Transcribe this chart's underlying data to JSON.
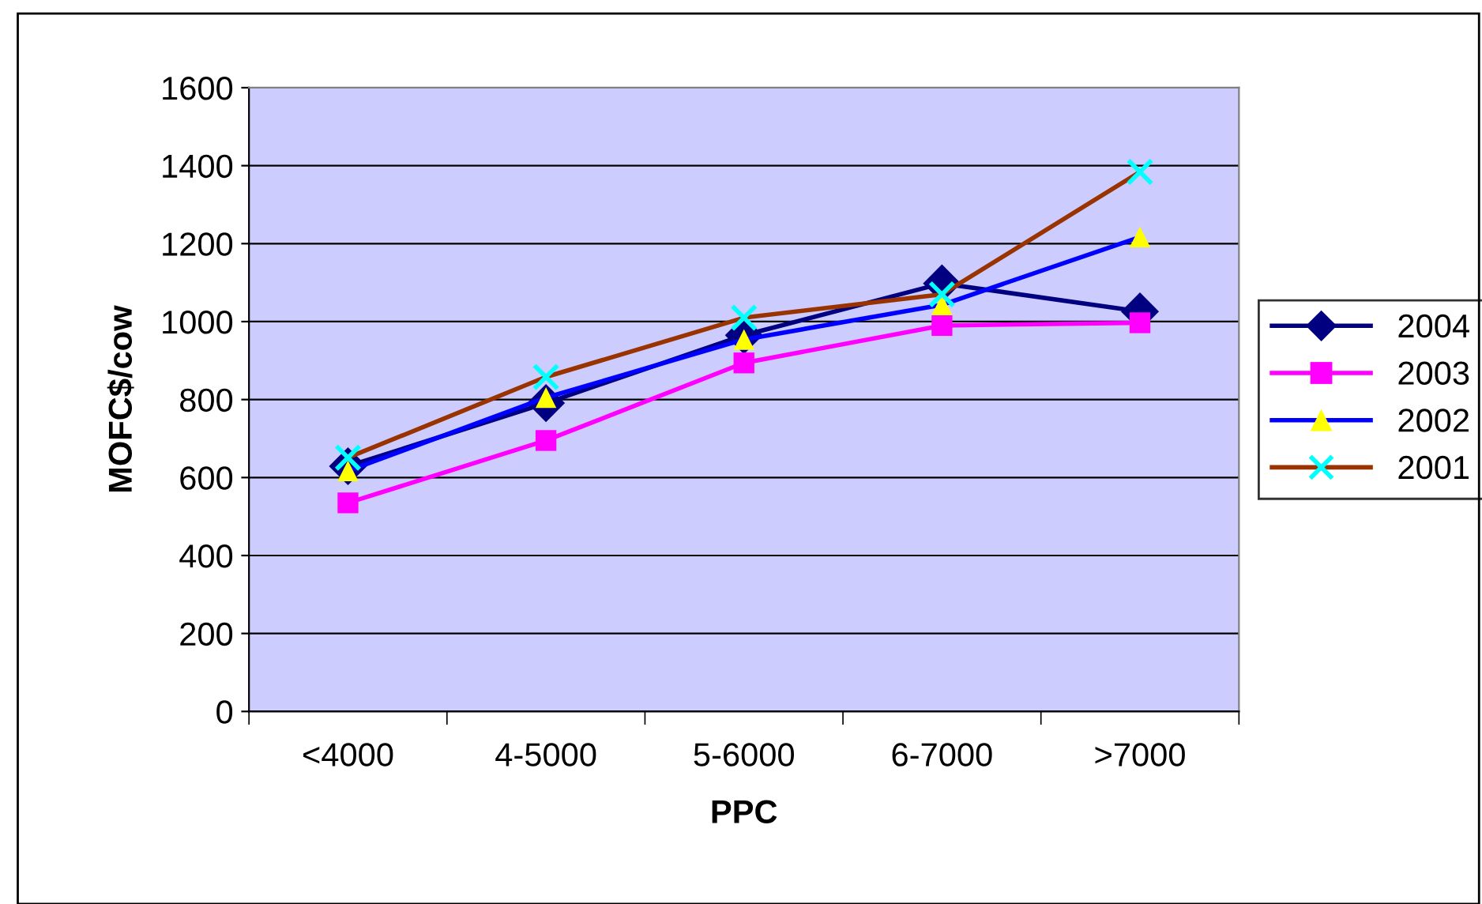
{
  "chart_data": {
    "type": "line",
    "xlabel": "PPC",
    "ylabel": "MOFC$/cow",
    "categories": [
      "<4000",
      "4-5000",
      "5-6000",
      "6-7000",
      ">7000"
    ],
    "series": [
      {
        "name": "2004",
        "color": "#000080",
        "colors": [
          "#000080",
          "#000080",
          "#000080",
          "#000080",
          "#000080"
        ],
        "marker": "diamond",
        "values": [
          629,
          791,
          965,
          1098,
          1026
        ]
      },
      {
        "name": "2003",
        "color": "#ff00ff",
        "colors": [
          "#ff00ff",
          "#ff00ff",
          "#ff00ff",
          "#ff00ff",
          "#ff00ff"
        ],
        "marker": "square",
        "values": [
          535,
          695,
          894,
          990,
          997
        ]
      },
      {
        "name": "2002",
        "color": "#0000ff",
        "colors": [
          "#ffff00",
          "#ffff00",
          "#ffff00",
          "#ffff00",
          "#ffff00"
        ],
        "marker": "triangle",
        "values": [
          617,
          805,
          954,
          1043,
          1217
        ]
      },
      {
        "name": "2001",
        "color": "#993300",
        "colors": [
          "#00ffff",
          "#00ffff",
          "#00ffff",
          "#00ffff",
          "#00ffff"
        ],
        "marker": "cross",
        "values": [
          651,
          858,
          1010,
          1070,
          1384
        ]
      }
    ],
    "ylim": [
      0,
      1600
    ],
    "yticks": [
      0,
      200,
      400,
      600,
      800,
      1000,
      1200,
      1400,
      1600
    ],
    "grid": "y",
    "legend": "right"
  }
}
